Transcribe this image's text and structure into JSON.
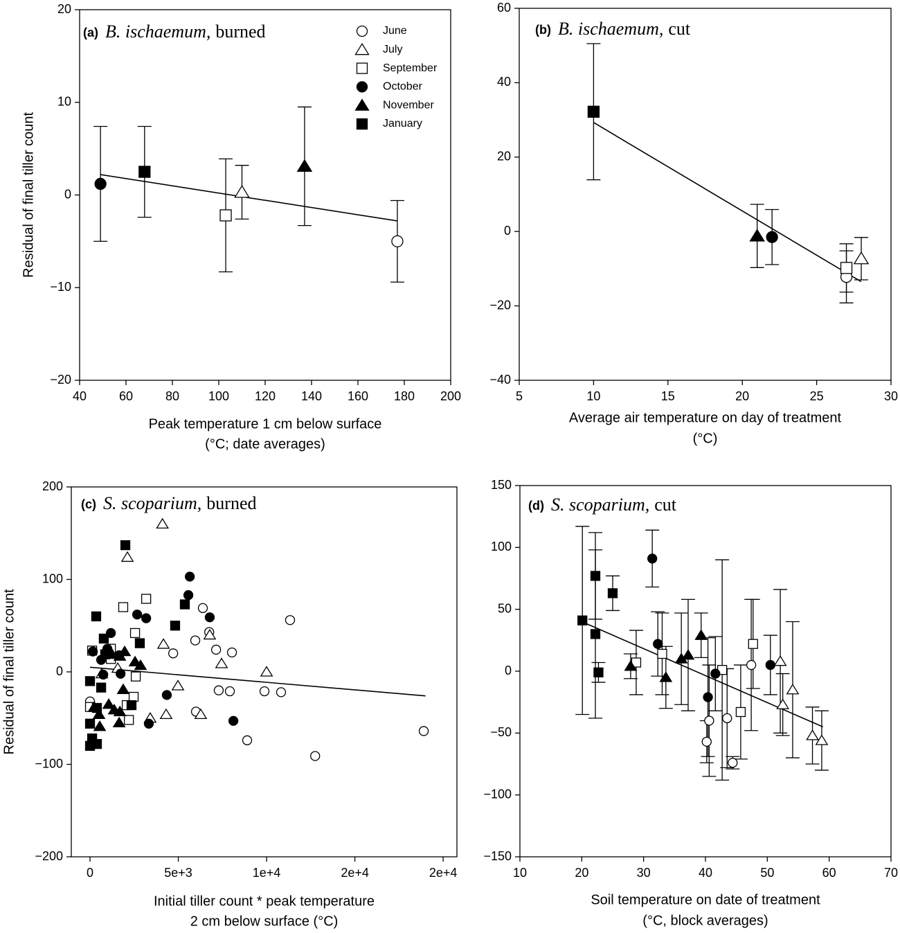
{
  "chart_data": [
    {
      "type": "scatter",
      "label": "(a)",
      "species": "B. ischaemum,",
      "treatment": "burned",
      "x_label": [
        "Peak temperature 1 cm below surface",
        "(°C; date averages)"
      ],
      "y_label": "Residual of final tiller count",
      "legend": true,
      "xlim": [
        40,
        200
      ],
      "ylim": [
        -20,
        20
      ],
      "xticks": [
        40,
        60,
        80,
        100,
        120,
        140,
        160,
        180,
        200
      ],
      "yticks": [
        {
          "value": -20,
          "label": "−20"
        },
        {
          "value": -10,
          "label": "−10"
        },
        0,
        10,
        20
      ],
      "series": [
        {
          "name": "June",
          "marker": "circle",
          "filled": false,
          "x": [
            177
          ],
          "y": [
            -5.0
          ],
          "errors": [
            4.4
          ]
        },
        {
          "name": "July",
          "marker": "triangle",
          "filled": false,
          "x": [
            110
          ],
          "y": [
            0.3
          ],
          "errors": [
            2.9
          ]
        },
        {
          "name": "September",
          "marker": "square",
          "filled": false,
          "x": [
            103
          ],
          "y": [
            -2.2
          ],
          "errors": [
            6.1
          ]
        },
        {
          "name": "October",
          "marker": "circle",
          "filled": true,
          "x": [
            49
          ],
          "y": [
            1.2
          ],
          "errors": [
            6.2
          ]
        },
        {
          "name": "November",
          "marker": "triangle",
          "filled": true,
          "x": [
            137
          ],
          "y": [
            3.1
          ],
          "errors": [
            6.4
          ]
        },
        {
          "name": "January",
          "marker": "square",
          "filled": true,
          "x": [
            68
          ],
          "y": [
            2.5
          ],
          "errors": [
            4.9
          ]
        }
      ],
      "fit": {
        "x": [
          49,
          177
        ],
        "y": [
          2.2,
          -2.8
        ]
      }
    },
    {
      "type": "scatter",
      "label": "(b)",
      "species": "B. ischaemum,",
      "treatment": "cut",
      "x_label": [
        "Average air temperature on day of treatment",
        "(°C)"
      ],
      "xlim": [
        5,
        30
      ],
      "ylim": [
        -40,
        60
      ],
      "xticks": [
        5,
        10,
        15,
        20,
        25,
        30
      ],
      "yticks": [
        {
          "value": -40,
          "label": "−40"
        },
        {
          "value": -20,
          "label": "−20"
        },
        0,
        20,
        40,
        60
      ],
      "series": [
        {
          "name": "June",
          "marker": "circle",
          "filled": false,
          "x": [
            27
          ],
          "y": [
            -12.2
          ],
          "errors": [
            7.0
          ]
        },
        {
          "name": "July",
          "marker": "triangle",
          "filled": false,
          "x": [
            28
          ],
          "y": [
            -7.3
          ],
          "errors": [
            5.7
          ]
        },
        {
          "name": "September",
          "marker": "square",
          "filled": false,
          "x": [
            27
          ],
          "y": [
            -9.8
          ],
          "errors": [
            6.5
          ]
        },
        {
          "name": "October",
          "marker": "circle",
          "filled": true,
          "x": [
            22
          ],
          "y": [
            -1.5
          ],
          "errors": [
            7.4
          ]
        },
        {
          "name": "November",
          "marker": "triangle",
          "filled": true,
          "x": [
            21
          ],
          "y": [
            -1.2
          ],
          "errors": [
            8.5
          ]
        },
        {
          "name": "January",
          "marker": "square",
          "filled": true,
          "x": [
            10
          ],
          "y": [
            32.2
          ],
          "errors": [
            18.3
          ]
        }
      ],
      "fit": {
        "x": [
          10,
          28
        ],
        "y": [
          29.3,
          -13.5
        ]
      }
    },
    {
      "type": "scatter",
      "label": "(c)",
      "species": "S. scoparium,",
      "treatment": "burned",
      "x_label": [
        "Initial tiller count * peak temperature",
        "2 cm below surface (°C)"
      ],
      "y_label": "Residual of final tiller count",
      "xlim": [
        -1060,
        20780
      ],
      "ylim": [
        -200,
        200
      ],
      "xticks": [
        0,
        {
          "value": 5000,
          "label": "5e+3"
        },
        {
          "value": 10000,
          "label": "1e+4"
        },
        {
          "value": 15000,
          "label": "2e+4"
        },
        {
          "value": 20000,
          "label": "2e+4"
        }
      ],
      "yticks": [
        {
          "value": -200,
          "label": "−200"
        },
        {
          "value": -100,
          "label": "−100"
        },
        0,
        100,
        200
      ],
      "series": [
        {
          "name": "June",
          "marker": "circle",
          "filled": false,
          "x": [
            6390,
            6750,
            7140,
            8040,
            5960,
            4710,
            11330,
            7290,
            7920,
            9880,
            10820,
            6000,
            8900,
            12750,
            18900,
            0
          ],
          "y": [
            69,
            43,
            24,
            21,
            34,
            20,
            56,
            -20,
            -21,
            -21,
            -22,
            -43,
            -74,
            -91,
            -64,
            -32
          ]
        },
        {
          "name": "July",
          "marker": "triangle",
          "filled": false,
          "x": [
            4100,
            2120,
            4160,
            6780,
            7450,
            10000,
            4980,
            3410,
            4310,
            6270,
            670,
            1570
          ],
          "y": [
            160,
            124,
            30,
            40,
            9,
            0,
            -15,
            -50,
            -46,
            -46,
            -2,
            4
          ]
        },
        {
          "name": "September",
          "marker": "square",
          "filled": false,
          "x": [
            3180,
            1880,
            2550,
            2590,
            2470,
            2080,
            2200,
            120,
            0,
            1180,
            1180
          ],
          "y": [
            79,
            70,
            42,
            -5,
            -27,
            -36,
            -52,
            23,
            -38,
            14,
            25
          ]
        },
        {
          "name": "October",
          "marker": "circle",
          "filled": true,
          "x": [
            5650,
            5570,
            6780,
            2670,
            3180,
            1180,
            160,
            630,
            1650,
            980,
            4350,
            3330,
            8120,
            1730,
            750
          ],
          "y": [
            103,
            83,
            59,
            62,
            58,
            42,
            22,
            13,
            18,
            25,
            -25,
            -56,
            -53,
            -2,
            -3
          ]
        },
        {
          "name": "November",
          "marker": "triangle",
          "filled": true,
          "x": [
            240,
            510,
            1060,
            1370,
            1650,
            1690,
            1880,
            1960,
            2550,
            2860,
            1250,
            550,
            1690
          ],
          "y": [
            -38,
            -46,
            -35,
            -41,
            -55,
            -43,
            -19,
            22,
            11,
            7,
            19,
            -59,
            17
          ]
        },
        {
          "name": "January",
          "marker": "square",
          "filled": true,
          "x": [
            2000,
            350,
            5370,
            4820,
            2820,
            780,
            860,
            0,
            630,
            390,
            0,
            120,
            390,
            0,
            2350
          ],
          "y": [
            137,
            60,
            73,
            50,
            31,
            36,
            19,
            -10,
            -17,
            -39,
            -56,
            -72,
            -78,
            -80,
            -36
          ]
        }
      ],
      "fit": {
        "x": [
          0,
          19000
        ],
        "y": [
          5,
          -26
        ]
      }
    },
    {
      "type": "scatter",
      "label": "(d)",
      "species": "S. scoparium,",
      "treatment": "cut",
      "x_label": [
        "Soil temperature on date of treatment",
        "(°C, block averages)"
      ],
      "xlim": [
        10,
        70
      ],
      "ylim": [
        -150,
        150
      ],
      "xticks": [
        10,
        20,
        30,
        40,
        50,
        60,
        70
      ],
      "yticks": [
        {
          "value": -150,
          "label": "−150"
        },
        {
          "value": -100,
          "label": "−100"
        },
        {
          "value": -50,
          "label": "−50"
        },
        0,
        50,
        100,
        150
      ],
      "series": [
        {
          "name": "June",
          "marker": "circle",
          "filled": false,
          "x": [
            40.2,
            40.6,
            43.5,
            44.4,
            47.4
          ],
          "y": [
            -57,
            -40,
            -38,
            -74,
            5
          ],
          "errors": [
            17,
            45,
            40,
            5,
            53
          ]
        },
        {
          "name": "July",
          "marker": "triangle",
          "filled": false,
          "x": [
            52.1,
            52.5,
            54.1,
            57.3,
            58.8
          ],
          "y": [
            8,
            -27,
            -15,
            -52,
            -56
          ],
          "errors": [
            58,
            25,
            55,
            23,
            24
          ]
        },
        {
          "name": "September",
          "marker": "square",
          "filled": false,
          "x": [
            28.8,
            33.0,
            42.7,
            45.7,
            47.7
          ],
          "y": [
            7,
            14,
            1,
            -33,
            22
          ],
          "errors": [
            26,
            33,
            89,
            38,
            36
          ]
        },
        {
          "name": "October",
          "marker": "circle",
          "filled": true,
          "x": [
            31.4,
            32.3,
            41.6,
            40.4,
            50.5
          ],
          "y": [
            91,
            22,
            -2,
            -21,
            5
          ],
          "errors": [
            23,
            26,
            30,
            48,
            24
          ]
        },
        {
          "name": "November",
          "marker": "triangle",
          "filled": true,
          "x": [
            27.9,
            33.6,
            36.1,
            37.2,
            39.3
          ],
          "y": [
            4,
            -5,
            10,
            13,
            29
          ],
          "errors": [
            10,
            25,
            37,
            45,
            18
          ]
        },
        {
          "name": "January",
          "marker": "square",
          "filled": true,
          "x": [
            20.1,
            22.2,
            22.2,
            22.7,
            25.0
          ],
          "y": [
            41,
            77,
            30,
            -1,
            63
          ],
          "errors": [
            76,
            35,
            68,
            8,
            14
          ]
        }
      ],
      "fit": {
        "x": [
          20,
          59
        ],
        "y": [
          40,
          -45
        ]
      }
    }
  ]
}
